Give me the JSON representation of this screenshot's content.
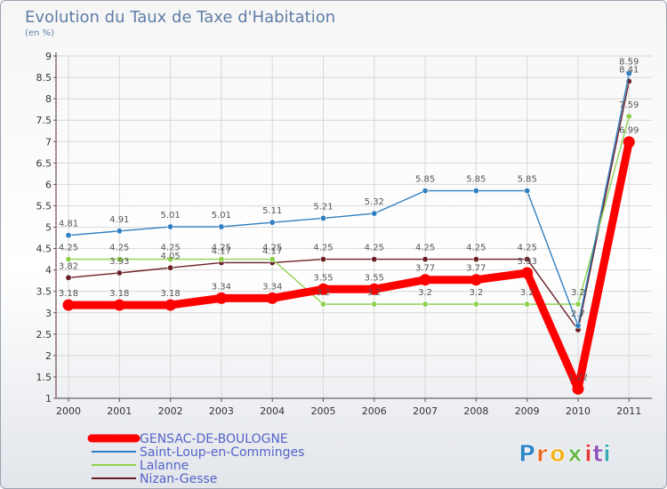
{
  "chart_data": {
    "type": "line",
    "title": "Evolution du Taux de Taxe d'Habitation",
    "subtitle": "(en %)",
    "xlabel": "",
    "ylabel": "",
    "categories": [
      "2000",
      "2001",
      "2002",
      "2003",
      "2004",
      "2005",
      "2006",
      "2007",
      "2008",
      "2009",
      "2010",
      "2011"
    ],
    "ylim": [
      1,
      9
    ],
    "yticks": [
      "1",
      "1.5",
      "2",
      "2.5",
      "3",
      "3.5",
      "4",
      "4.5",
      "5",
      "5.5",
      "6",
      "6.5",
      "7",
      "7.5",
      "8",
      "8.5",
      "9"
    ],
    "grid": true,
    "legend_position": "bottom-left",
    "series": [
      {
        "name": "GENSAC-DE-BOULOGNE",
        "color": "#ff0000",
        "values": [
          3.18,
          3.18,
          3.18,
          3.34,
          3.34,
          3.55,
          3.55,
          3.77,
          3.77,
          3.93,
          1.22,
          6.99
        ],
        "labels": [
          "3.18",
          "3.18",
          "3.18",
          "3.34",
          "3.34",
          "3.55",
          "3.55",
          "3.77",
          "3.77",
          "3.93",
          "1.22",
          "6.99"
        ]
      },
      {
        "name": "Saint-Loup-en-Comminges",
        "color": "#2f7fc1",
        "values": [
          4.81,
          4.91,
          5.01,
          5.01,
          5.11,
          5.21,
          5.32,
          5.85,
          5.85,
          5.85,
          2.7,
          8.59
        ],
        "labels": [
          "4.81",
          "4.91",
          "5.01",
          "5.01",
          "5.11",
          "5.21",
          "5.32",
          "5.85",
          "5.85",
          "5.85",
          "2.7",
          "8.59"
        ]
      },
      {
        "name": "Lalanne",
        "color": "#8fd14f",
        "values": [
          4.25,
          4.25,
          4.25,
          4.25,
          4.25,
          3.2,
          3.2,
          3.2,
          3.2,
          3.2,
          3.2,
          7.59
        ],
        "labels": [
          "4.25",
          "4.25",
          "4.25",
          "4.25",
          "4.25",
          "3.2",
          "3.2",
          "3.2",
          "3.2",
          "3.2",
          "3.2",
          "7.59"
        ]
      },
      {
        "name": "Nizan-Gesse",
        "color": "#6a1f25",
        "values": [
          3.82,
          3.93,
          4.05,
          4.17,
          4.17,
          4.25,
          4.25,
          4.25,
          4.25,
          4.25,
          2.6,
          8.41
        ],
        "labels": [
          "3.82",
          "3.93",
          "4.05",
          "4.17",
          "4.17",
          "4.25",
          "4.25",
          "4.25",
          "4.25",
          "4.25",
          "",
          "8.41"
        ]
      }
    ]
  },
  "logo": {
    "text": "Proxiti",
    "letters": [
      "P",
      "r",
      "o",
      "x",
      "i",
      "t",
      "i"
    ]
  }
}
